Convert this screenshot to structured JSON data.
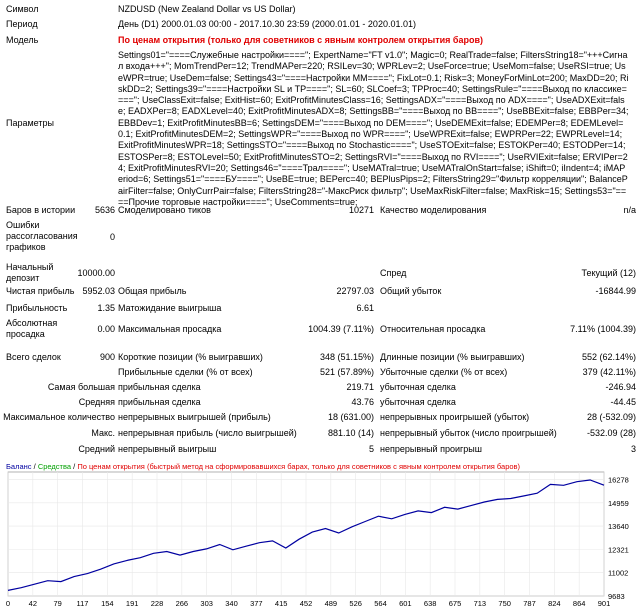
{
  "header": {
    "symbol_label": "Символ",
    "symbol_value": "NZDUSD (New Zealand Dollar vs US Dollar)",
    "period_label": "Период",
    "period_value": "День (D1) 2000.01.03 00:00 - 2017.10.30 23:59 (2000.01.01 - 2020.01.01)",
    "model_label": "Модель",
    "model_value": "По ценам открытия (только для советников с явным контролем открытия баров)",
    "params_label": "Параметры",
    "params_value": "Settings01=\"====Служебные настройки====\"; ExpertName=\"FT v1.0\"; Magic=0; RealTrade=false; FiltersString18=\"+++Сигнал входа+++\"; MomTrendPer=12; TrendMAPer=220; RSILev=30; WPRLev=2; UseForce=true; UseMom=false; UseRSI=true; UseWPR=true; UseDem=false; Settings43=\"====Настройки MM====\"; FixLot=0.1; Risk=3; MoneyForMinLot=200; MaxDD=20; RiskDD=2; Settings39=\"====Настройки SL и TP====\"; SL=60; SLCoef=3; TPProc=40; SettingsRule=\"====Выход по классике====\"; UseClassExit=false; ExitHist=60; ExitProfitMinutesClass=16; SettingsADX=\"====Выход по ADX====\"; UseADXExit=false; EADXPer=8; EADXLevel=40; ExitProfitMinutesADX=8; SettingsBB=\"====Выход по BB====\"; UseBBExit=false; EBBPer=34; EBBDev=1; ExitProfitMinutesBB=6; SettingsDEM=\"====Выход по DEM====\"; UseDEMExit=false; EDEMPer=8; EDEMLevel=0.1; ExitProfitMinutesDEM=2; SettingsWPR=\"====Выход по WPR====\"; UseWPRExit=false; EWPRPer=22; EWPRLevel=14; ExitProfitMinutesWPR=18; SettingsSTO=\"====Выход по Stochastic====\"; UseSTOExit=false; ESTOKPer=40; ESTODPer=14; ESTOSPer=8; ESTOLevel=50; ExitProfitMinutesSTO=2; SettingsRVI=\"====Выход по RVI====\"; UseRVIExit=false; ERVIPer=24; ExitProfitMinutesRVI=20; Settings46=\"====Трал====\"; UseMATral=true; UseMATralOnStart=false; iShift=0; iIndent=4; iMAPeriod=6; Settings51=\"====БУ====\"; UseBE=true; BEPerc=40; BEPlusPips=2; FiltersString29=\"Фильтр корреляции\"; BalancePairFilter=false; OnlyCurrPair=false; FiltersString28=\"-МаксРиск фильтр\"; UseMaxRiskFilter=false; MaxRisk=15; Settings53=\"====Прочие торговые настройки====\"; UseComments=true;"
  },
  "stats": {
    "bars_label": "Баров в истории",
    "bars_value": "5636",
    "ticks_label": "Смоделировано тиков",
    "ticks_value": "10271",
    "quality_label": "Качество моделирования",
    "quality_value": "n/a",
    "errors_label": "Ошибки рассогласования графиков",
    "errors_value": "0",
    "deposit_label": "Начальный депозит",
    "deposit_value": "10000.00",
    "spread_label": "Спред",
    "spread_value": "Текущий (12)",
    "net_label": "Чистая прибыль",
    "net_value": "5952.03",
    "gross_profit_label": "Общая прибыль",
    "gross_profit_value": "22797.03",
    "gross_loss_label": "Общий убыток",
    "gross_loss_value": "-16844.99",
    "pf_label": "Прибыльность",
    "pf_value": "1.35",
    "payoff_label": "Матожидание выигрыша",
    "payoff_value": "6.61",
    "abs_dd_label": "Абсолютная просадка",
    "abs_dd_value": "0.00",
    "max_dd_label": "Максимальная просадка",
    "max_dd_value": "1004.39 (7.11%)",
    "rel_dd_label": "Относительная просадка",
    "rel_dd_value": "7.11% (1004.39)",
    "total_label": "Всего сделок",
    "total_value": "900",
    "short_label": "Короткие позиции (% выигравших)",
    "short_value": "348 (51.15%)",
    "long_label": "Длинные позиции (% выигравших)",
    "long_value": "552 (62.14%)",
    "win_label": "Прибыльные сделки (% от всех)",
    "win_value": "521 (57.89%)",
    "loss_label": "Убыточные сделки (% от всех)",
    "loss_value": "379 (42.11%)",
    "largest_label": "Самая большая",
    "largest_profit_label": "прибыльная сделка",
    "largest_profit_value": "219.71",
    "largest_loss_label": "убыточная сделка",
    "largest_loss_value": "-246.94",
    "average_label": "Средняя",
    "average_profit_label": "прибыльная сделка",
    "average_profit_value": "43.76",
    "average_loss_label": "убыточная сделка",
    "average_loss_value": "-44.45",
    "maxcount_label": "Максимальное количество",
    "maxcons_wins_label": "непрерывных выигрышей (прибыль)",
    "maxcons_wins_value": "18 (631.00)",
    "maxcons_losses_label": "непрерывных проигрышей (убыток)",
    "maxcons_losses_value": "28 (-532.09)",
    "max_label": "Макс.",
    "maxcons_profit_label": "непрерывная прибыль (число выигрышей)",
    "maxcons_profit_value": "881.10 (14)",
    "maxcons_loss_label": "непрерывный убыток (число проигрышей)",
    "maxcons_loss_value": "-532.09 (28)",
    "avgcons_label": "Средний",
    "avgcons_wins_label": "непрерывный выигрыш",
    "avgcons_wins_value": "5",
    "avgcons_losses_label": "непрерывный проигрыш",
    "avgcons_losses_value": "3"
  },
  "legend": {
    "balance": "Баланс",
    "sep1": " / ",
    "equity": "Средства",
    "sep2": " / ",
    "model": "По ценам открытия (быстрый метод на сформировавшихся барах, только для советников с явным контролем открытия баров)"
  },
  "colors": {
    "balance": "#0000a0",
    "equity": "#00a000",
    "model": "#e00000",
    "grid": "#e8e8e8"
  },
  "chart_data": {
    "type": "line",
    "xlabel": "",
    "ylabel": "",
    "x_ticks": [
      "0",
      "42",
      "79",
      "117",
      "154",
      "191",
      "228",
      "266",
      "303",
      "340",
      "377",
      "415",
      "452",
      "489",
      "526",
      "564",
      "601",
      "638",
      "675",
      "713",
      "750",
      "787",
      "824",
      "864",
      "901"
    ],
    "y_ticks": [
      "9683",
      "11002",
      "12321",
      "13640",
      "14959",
      "16278"
    ],
    "xlim": [
      0,
      901
    ],
    "ylim": [
      9683,
      16700
    ],
    "series": [
      {
        "name": "Баланс",
        "x": [
          0,
          20,
          40,
          60,
          80,
          100,
          120,
          140,
          160,
          180,
          200,
          220,
          240,
          260,
          280,
          300,
          320,
          340,
          360,
          380,
          400,
          420,
          440,
          460,
          480,
          500,
          520,
          540,
          560,
          580,
          600,
          620,
          640,
          660,
          680,
          700,
          720,
          740,
          760,
          780,
          800,
          820,
          840,
          860,
          880,
          901
        ],
        "values": [
          10000,
          10150,
          10350,
          10550,
          10500,
          10780,
          10950,
          11200,
          11500,
          11700,
          11850,
          12100,
          12200,
          12000,
          12200,
          12350,
          12600,
          12300,
          12500,
          12700,
          12800,
          12400,
          12900,
          13300,
          13500,
          13250,
          13600,
          13900,
          14200,
          14050,
          14300,
          14500,
          14400,
          14700,
          14600,
          14800,
          15000,
          15150,
          15200,
          15350,
          15500,
          16000,
          15950,
          16150,
          16250,
          15952
        ]
      }
    ]
  }
}
